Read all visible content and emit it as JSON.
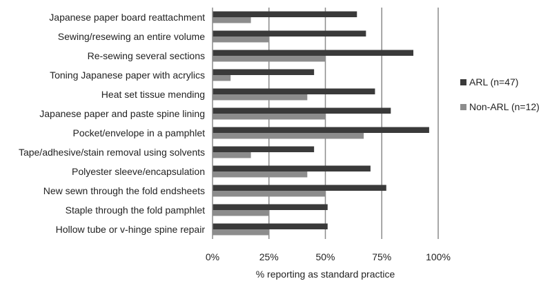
{
  "chart_data": {
    "type": "bar",
    "orientation": "horizontal",
    "categories": [
      "Japanese paper board reattachment",
      "Sewing/resewing an entire volume",
      "Re-sewing several sections",
      "Toning Japanese paper with acrylics",
      "Heat set tissue mending",
      "Japanese paper and paste spine lining",
      "Pocket/envelope in a pamphlet",
      "Tape/adhesive/stain removal using solvents",
      "Polyester sleeve/encapsulation",
      "New sewn through the fold endsheets",
      "Staple through the fold pamphlet",
      "Hollow tube or v-hinge spine repair"
    ],
    "series": [
      {
        "name": "ARL (n=47)",
        "color": "#3a3a3a",
        "values": [
          64,
          68,
          89,
          45,
          72,
          79,
          96,
          45,
          70,
          77,
          51,
          51
        ]
      },
      {
        "name": "Non-ARL (n=12)",
        "color": "#8c8c8c",
        "values": [
          17,
          25,
          50,
          8,
          42,
          50,
          67,
          17,
          42,
          50,
          25,
          25
        ]
      }
    ],
    "xlim": [
      0,
      100
    ],
    "xticks": [
      "0%",
      "25%",
      "50%",
      "75%",
      "100%"
    ],
    "xlabel": "% reporting as standard practice",
    "ylabel": "",
    "title": "",
    "grid": "vertical",
    "legend_position": "right"
  }
}
